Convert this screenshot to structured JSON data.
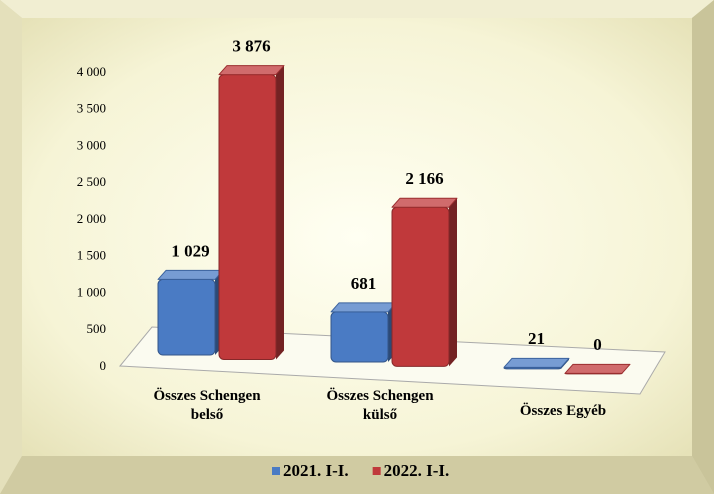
{
  "chart_data": {
    "type": "bar3d",
    "categories": [
      "Összes Schengen belső",
      "Összes Schengen külső",
      "Összes Egyéb"
    ],
    "series": [
      {
        "name": "2021. I-I.",
        "color": "#4a7bc4",
        "values": [
          1029,
          681,
          21
        ],
        "value_labels": [
          "1 029",
          "681",
          "21"
        ]
      },
      {
        "name": "2022. I-I.",
        "color": "#c0393b",
        "values": [
          3876,
          2166,
          0
        ],
        "value_labels": [
          "3 876",
          "2 166",
          "0"
        ]
      }
    ],
    "ylim": [
      0,
      4000
    ],
    "yticks": [
      0,
      500,
      {
        "value": 1000,
        "label": "1 000"
      },
      {
        "value": 1500,
        "label": "1 500"
      },
      {
        "value": 2000,
        "label": "2 000"
      },
      {
        "value": 2500,
        "label": "2 500"
      },
      {
        "value": 3000,
        "label": "3 000"
      },
      {
        "value": 3500,
        "label": "3 500"
      },
      {
        "value": 4000,
        "label": "4 000"
      }
    ],
    "legend": "bottom"
  }
}
